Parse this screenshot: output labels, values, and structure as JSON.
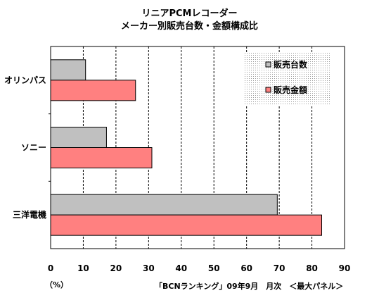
{
  "chart_data": {
    "type": "bar",
    "orientation": "horizontal",
    "title": [
      "リニアPCMレコーダー",
      "メーカー別販売台数・金額構成比"
    ],
    "categories": [
      "オリンパス",
      "ソニー",
      "三洋電機"
    ],
    "series": [
      {
        "name": "販売台数",
        "values": [
          10.7,
          17.1,
          69.4
        ],
        "color": "#c0c0c0"
      },
      {
        "name": "販売金額",
        "values": [
          26.0,
          31.0,
          83.0
        ],
        "color": "#ff8080"
      }
    ],
    "xlim": [
      0,
      90
    ],
    "xticks": [
      "0",
      "10",
      "20",
      "30",
      "40",
      "50",
      "60",
      "70",
      "80",
      "90"
    ],
    "xlabel": "（%）",
    "grid": "vertical dashed",
    "legend_position": "top-right"
  },
  "source_note": "「BCNランキング」09年9月　月次　＜最大パネル＞"
}
